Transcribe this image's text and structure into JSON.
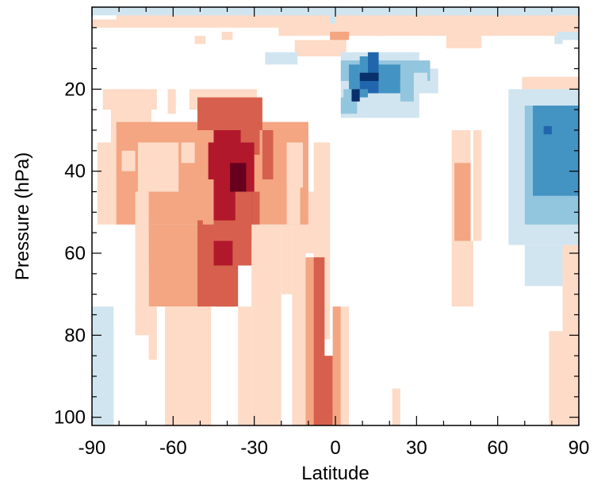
{
  "chart_data": {
    "type": "heatmap",
    "title": "",
    "xlabel": "Latitude",
    "ylabel": "Pressure (hPa)",
    "xlim": [
      -90,
      90
    ],
    "ylim": [
      102,
      0
    ],
    "xticks": [
      -90,
      -60,
      -30,
      0,
      30,
      60,
      90
    ],
    "yticks": [
      20,
      40,
      60,
      80,
      100
    ],
    "xtick_labels": [
      "-90",
      "-60",
      "-30",
      "0",
      "30",
      "60",
      "90"
    ],
    "ytick_labels": [
      "20",
      "40",
      "60",
      "80",
      "100"
    ],
    "grid": false,
    "legend": "none",
    "colormap": {
      "-4": "#08306b",
      "-3": "#2166ac",
      "-2": "#4393c3",
      "-1": "#92c5de",
      "-0.5": "#d1e5f0",
      "0.5": "#fddbc7",
      "1": "#f4a582",
      "2": "#d6604d",
      "3": "#b2182b",
      "4": "#67001f"
    },
    "cells": [
      [
        -81,
        1,
        83,
        3,
        0.5
      ],
      [
        -90,
        3,
        -84,
        4,
        -2
      ],
      [
        -84,
        3,
        -81,
        5,
        -0.5
      ],
      [
        -90,
        3,
        90,
        5,
        0.5
      ],
      [
        -15,
        8,
        4,
        12,
        0.5
      ],
      [
        -21,
        2,
        90,
        7,
        0.5
      ],
      [
        -52,
        7,
        -48,
        9,
        0.5
      ],
      [
        -42,
        6,
        -38,
        8,
        0.5
      ],
      [
        -2,
        6,
        5,
        8,
        1
      ],
      [
        15,
        4,
        18,
        7,
        0.5
      ],
      [
        41,
        3,
        54,
        10,
        0.5
      ],
      [
        -2,
        0,
        0,
        4,
        -0.5
      ],
      [
        -90,
        0,
        90,
        2,
        -0.5
      ],
      [
        82,
        6,
        90,
        8,
        -0.5
      ],
      [
        -26,
        11,
        -14,
        14,
        -0.5
      ],
      [
        3,
        15,
        38,
        21,
        -0.5
      ],
      [
        2,
        11,
        31,
        27,
        -0.5
      ],
      [
        2,
        13,
        35,
        18,
        -1
      ],
      [
        -82,
        79,
        -90,
        102,
        -0.5
      ],
      [
        -90,
        73,
        -82,
        102,
        -0.5
      ],
      [
        -86,
        20,
        -66,
        25,
        0.5
      ],
      [
        -62,
        20,
        -59,
        26,
        0.5
      ],
      [
        -54,
        20,
        -29,
        25,
        0.5
      ],
      [
        -83,
        25,
        -68,
        33,
        0.5
      ],
      [
        -88,
        33,
        -80,
        53,
        0.5
      ],
      [
        -81,
        28,
        -10,
        53,
        1
      ],
      [
        -73,
        33,
        -58,
        45,
        0.5
      ],
      [
        -57,
        33,
        -52,
        38,
        0.5
      ],
      [
        -51,
        22,
        -27,
        30,
        2
      ],
      [
        -45,
        30,
        -28,
        36,
        2
      ],
      [
        -47,
        33,
        -30,
        57,
        3
      ],
      [
        -45,
        30,
        -35,
        48,
        3
      ],
      [
        -39,
        38,
        -33,
        45,
        4
      ],
      [
        -27,
        30,
        -23,
        42,
        2
      ],
      [
        -23,
        30,
        -18,
        42,
        1
      ],
      [
        -18,
        33,
        -12,
        53,
        0.5
      ],
      [
        -13,
        45,
        -6,
        60,
        0.5
      ],
      [
        -8,
        33,
        -2,
        81,
        0.5
      ],
      [
        -74,
        45,
        -69,
        63,
        0.5
      ],
      [
        -69,
        53,
        -46,
        73,
        1
      ],
      [
        -74,
        63,
        -69,
        80,
        0.5
      ],
      [
        -69,
        73,
        -66,
        86,
        0.5
      ],
      [
        -63,
        73,
        -46,
        102,
        0.5
      ],
      [
        -51,
        52,
        -36,
        73,
        2
      ],
      [
        -37,
        45,
        -31,
        63,
        2
      ],
      [
        -31,
        45,
        -28,
        63,
        2
      ],
      [
        -45,
        57,
        -38,
        63,
        3
      ],
      [
        -44,
        63,
        -37,
        73,
        2
      ],
      [
        -36,
        73,
        -31,
        102,
        0.5
      ],
      [
        -31,
        53,
        -20,
        102,
        0.5
      ],
      [
        -20,
        53,
        -16,
        70,
        0.5
      ],
      [
        -16,
        53,
        -11,
        102,
        0.5
      ],
      [
        -11,
        61,
        -7,
        102,
        1
      ],
      [
        -8,
        61,
        -4,
        102,
        2
      ],
      [
        -7,
        85,
        -1,
        102,
        2
      ],
      [
        -1,
        73,
        2,
        102,
        1
      ],
      [
        2,
        73,
        5,
        102,
        0.5
      ],
      [
        -4,
        102,
        1,
        102,
        0.5
      ],
      [
        -79,
        35,
        -74,
        40,
        0.5
      ],
      [
        -68,
        38,
        -58,
        45,
        0.5
      ],
      [
        -49,
        42,
        -45,
        53,
        1
      ],
      [
        -13,
        44,
        -10,
        53,
        1
      ],
      [
        21,
        93,
        24,
        102,
        0.5
      ],
      [
        43,
        30,
        50,
        57,
        0.5
      ],
      [
        44,
        38,
        50,
        57,
        1
      ],
      [
        43,
        57,
        51,
        73,
        0.5
      ],
      [
        51,
        30,
        54,
        57,
        0.5
      ],
      [
        69,
        17,
        90,
        58,
        0.5
      ],
      [
        64,
        20,
        90,
        58,
        -0.5
      ],
      [
        70,
        24,
        90,
        53,
        -1
      ],
      [
        73,
        24,
        90,
        46,
        -2
      ],
      [
        77,
        29,
        80,
        31,
        -3
      ],
      [
        81,
        7,
        84,
        9,
        -0.5
      ],
      [
        79,
        79,
        90,
        102,
        0.5
      ],
      [
        84,
        58,
        90,
        102,
        0.5
      ],
      [
        70,
        58,
        84,
        68,
        -0.5
      ],
      [
        84,
        58,
        90,
        72,
        0.5
      ],
      [
        5,
        14,
        9,
        21,
        -2
      ],
      [
        9,
        12,
        12,
        22,
        -2
      ],
      [
        12,
        11,
        16,
        21,
        -3
      ],
      [
        16,
        14,
        24,
        21,
        -2
      ],
      [
        9,
        16,
        16,
        18,
        -4
      ],
      [
        9,
        18,
        12,
        20,
        -3
      ],
      [
        3,
        20,
        8,
        24,
        -1
      ],
      [
        2,
        22,
        8,
        26,
        -1
      ],
      [
        6,
        20,
        9,
        23,
        -4
      ],
      [
        24,
        16,
        29,
        23,
        -1
      ],
      [
        29,
        16,
        34,
        21,
        -0.5
      ]
    ]
  }
}
